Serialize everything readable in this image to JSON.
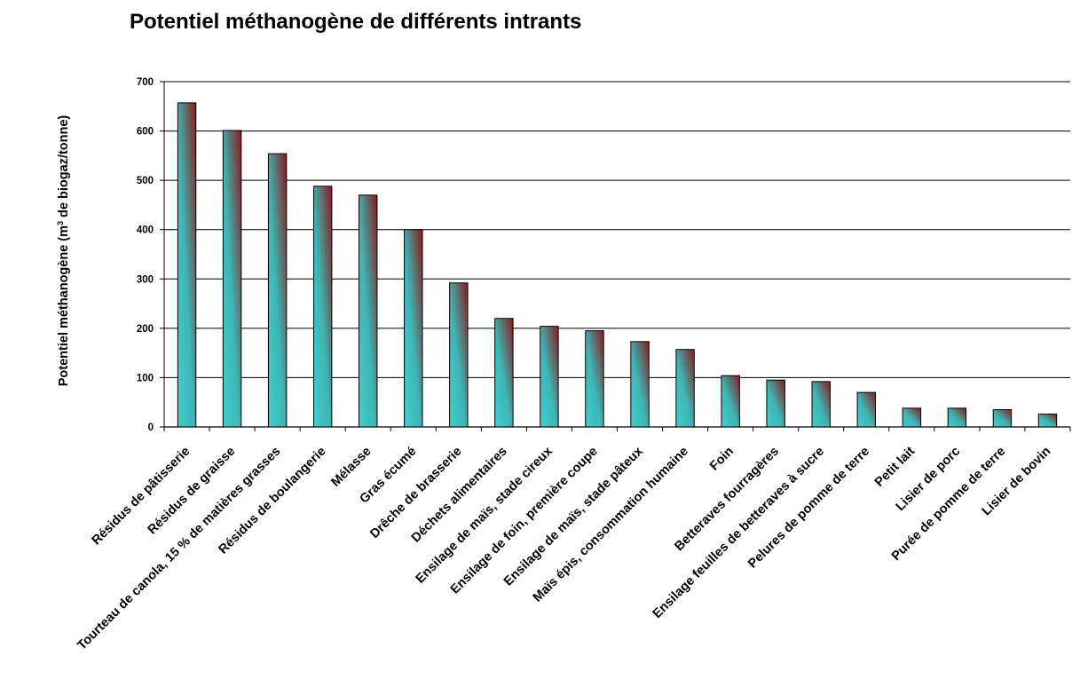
{
  "chart_data": {
    "type": "bar",
    "title": "Potentiel méthanogène de différents intrants",
    "ylabel": "Potentiel méthanogène (m³ de biogaz/tonne)",
    "ylabel_parts": [
      "Potentiel méthanogène (m",
      "3",
      " de biogaz/tonne)"
    ],
    "xlabel": "",
    "ylim": [
      0,
      700
    ],
    "yticks": [
      0,
      100,
      200,
      300,
      400,
      500,
      600,
      700
    ],
    "grid": true,
    "legend": "none",
    "categories": [
      "Résidus de pâtisserie",
      "Résidus de graisse",
      "Tourteau de canola, 15 % de matières grasses",
      "Résidus de boulangerie",
      "Mélasse",
      "Gras écumé",
      "Drêche de brasserie",
      "Déchets alimentaires",
      "Ensilage de maïs, stade cireux",
      "Ensilage de foin, première coupe",
      "Ensilage de maïs, stade pâteux",
      "Maïs épis, consommation humaine",
      "Foin",
      "Betteraves fourragères",
      "Ensilage feuilles de betteraves à sucre",
      "Pelures de pomme de terre",
      "Petit lait",
      "Lisier de porc",
      "Purée de pomme de terre",
      "Lisier de bovin"
    ],
    "values": [
      657,
      601,
      554,
      488,
      470,
      400,
      292,
      220,
      204,
      195,
      173,
      157,
      104,
      95,
      92,
      70,
      38,
      38,
      35,
      26
    ],
    "colors": {
      "bar_top": "#8b1a1a",
      "bar_bottom": "#3ecfcf",
      "grid": "#000000",
      "axis": "#000000"
    }
  }
}
